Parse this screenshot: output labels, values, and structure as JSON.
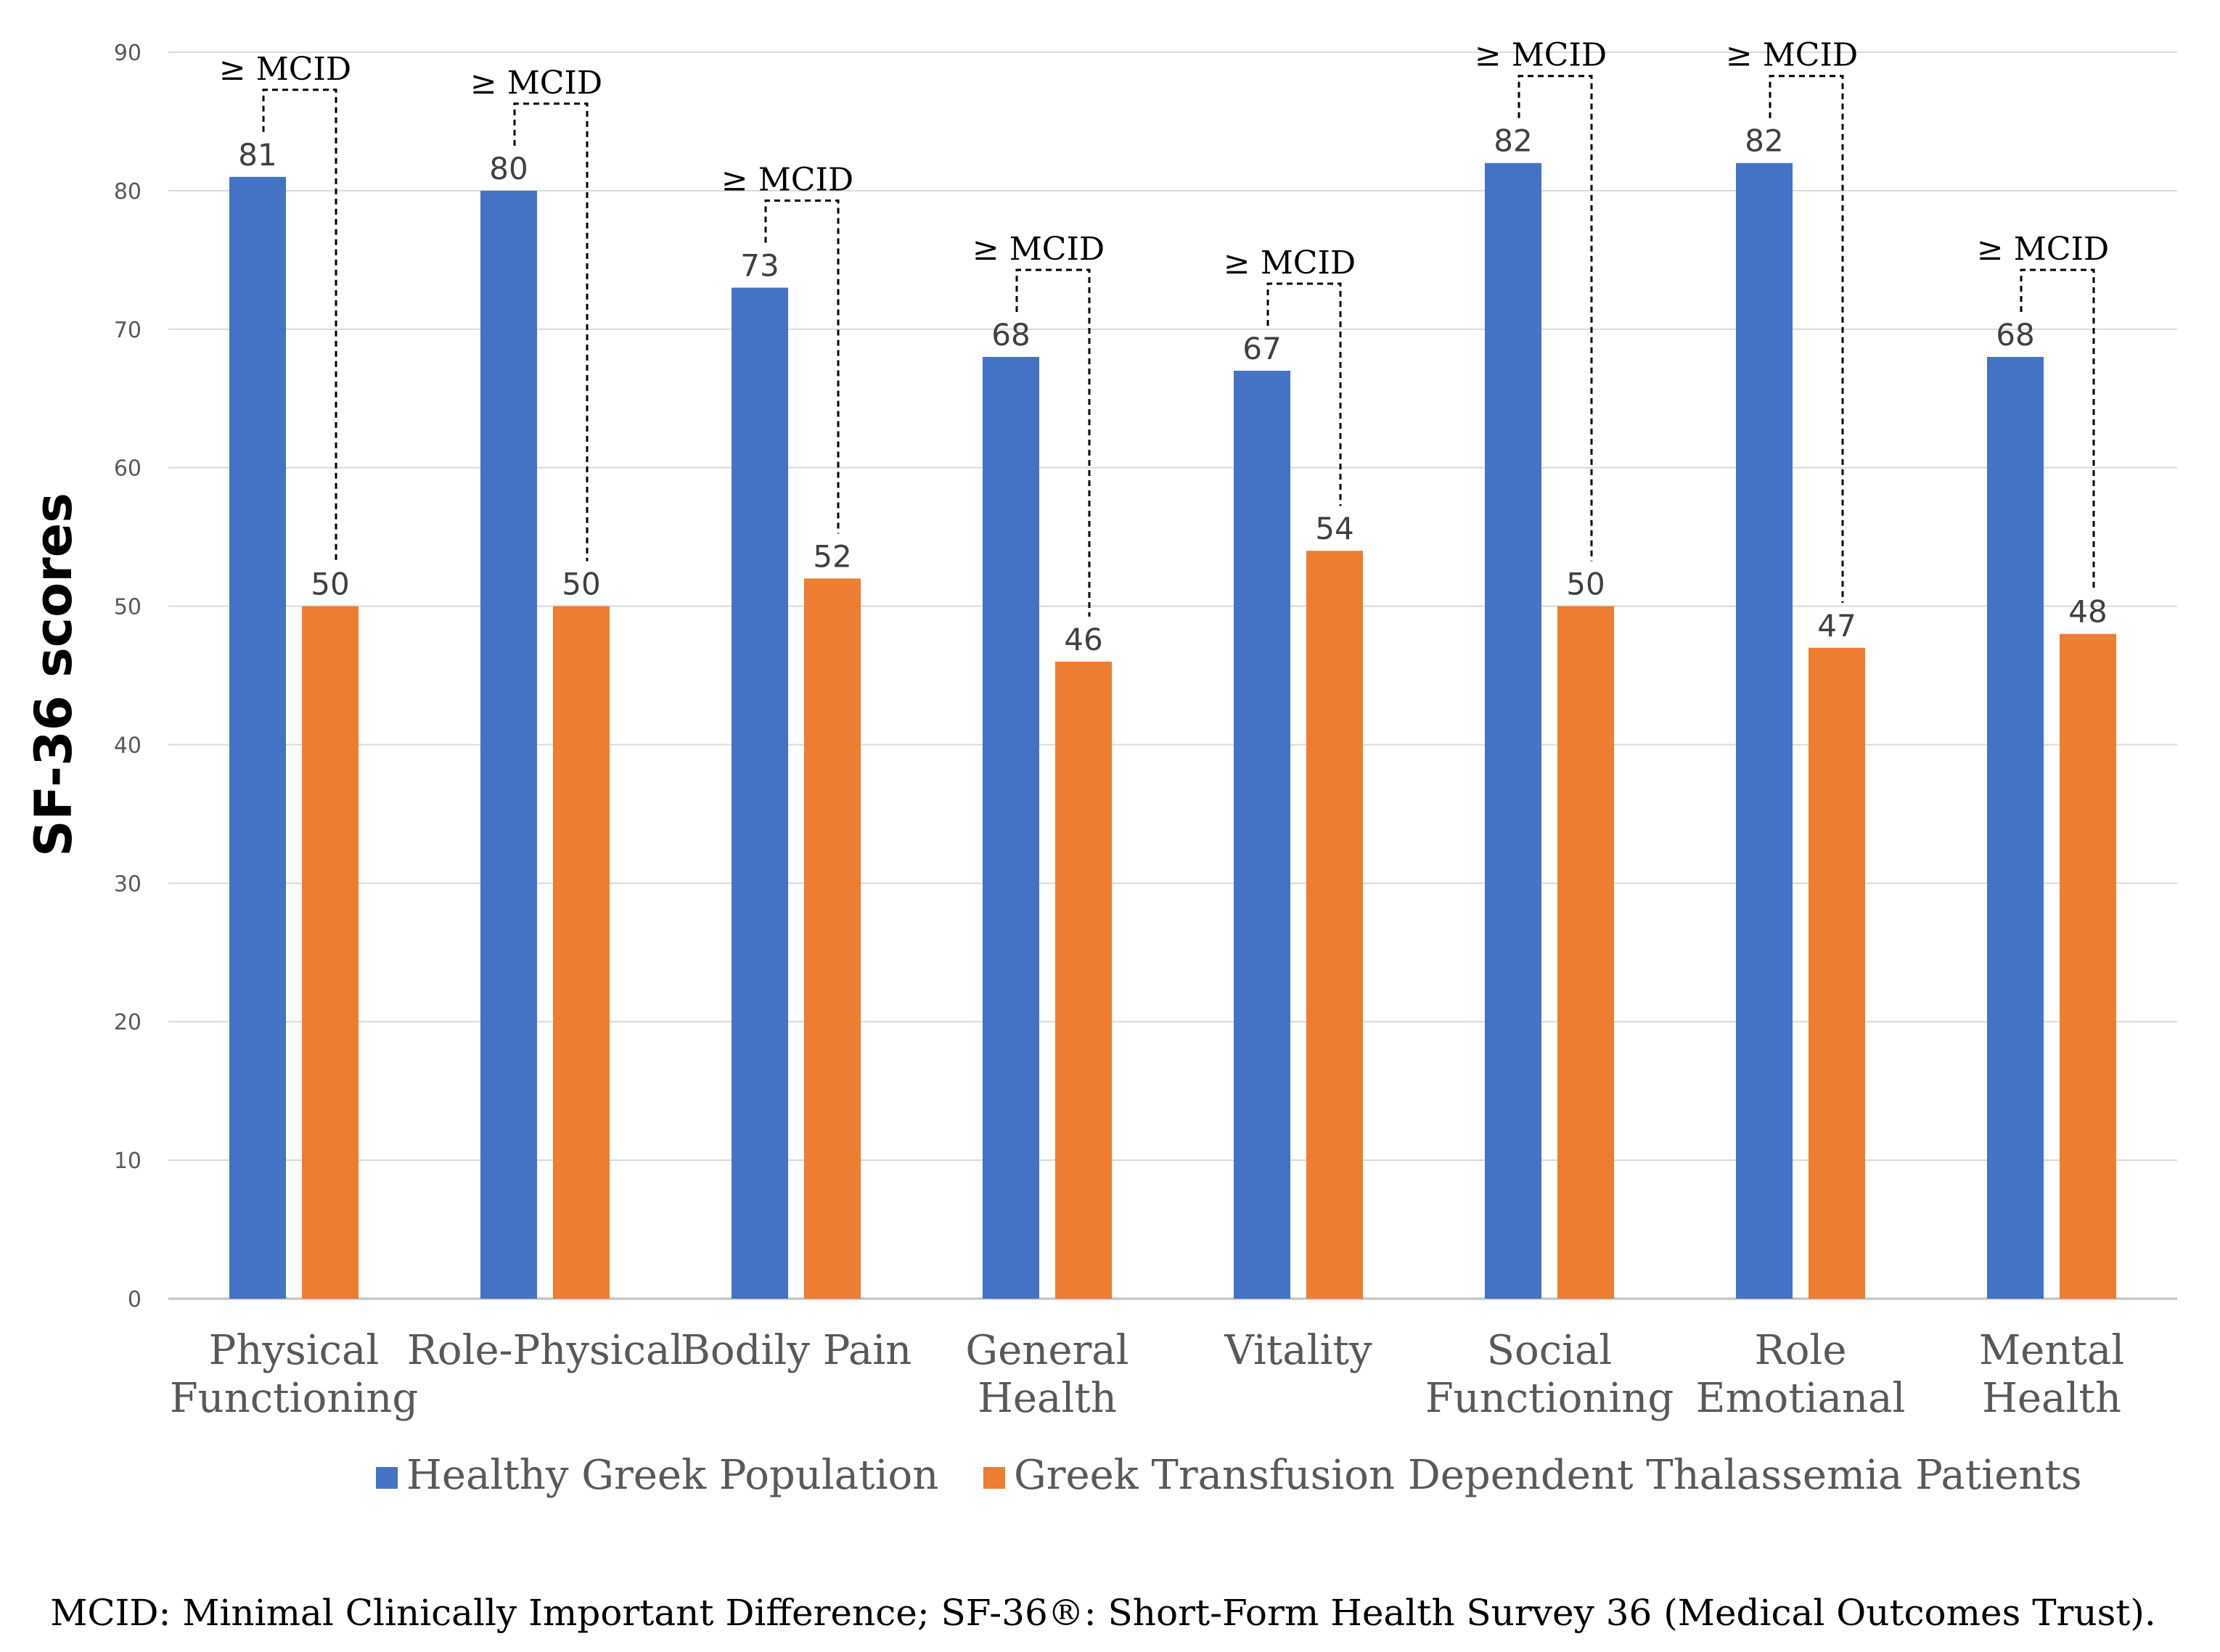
{
  "chart_data": {
    "type": "bar",
    "title": "",
    "ylabel": "SF-36 scores",
    "xlabel": "",
    "ylim": [
      0,
      90
    ],
    "yticks": [
      0,
      10,
      20,
      30,
      40,
      50,
      60,
      70,
      80,
      90
    ],
    "grid": true,
    "categories": [
      [
        "Physical",
        "Functioning"
      ],
      [
        "Role-Physical"
      ],
      [
        "Bodily Pain"
      ],
      [
        "General",
        "Health"
      ],
      [
        "Vitality"
      ],
      [
        "Social",
        "Functioning"
      ],
      [
        "Role",
        "Emotianal"
      ],
      [
        "Mental",
        "Health"
      ]
    ],
    "series": [
      {
        "name": "Healthy Greek Population",
        "color": "#4472C4",
        "values": [
          81,
          80,
          73,
          68,
          67,
          82,
          82,
          68
        ]
      },
      {
        "name": "Greek Transfusion Dependent Thalassemia Patients",
        "color": "#ED7D31",
        "values": [
          50,
          50,
          52,
          46,
          54,
          50,
          47,
          48
        ]
      }
    ],
    "annotations": {
      "bracket_label": "≥ MCID",
      "applies_to_all_categories": true,
      "style": "dashed bracket connecting the two bars of each category"
    },
    "legend_position": "bottom"
  },
  "footnote": "MCID: Minimal Clinically Important Difference; SF-36®: Short-Form Health Survey 36 (Medical Outcomes Trust)."
}
